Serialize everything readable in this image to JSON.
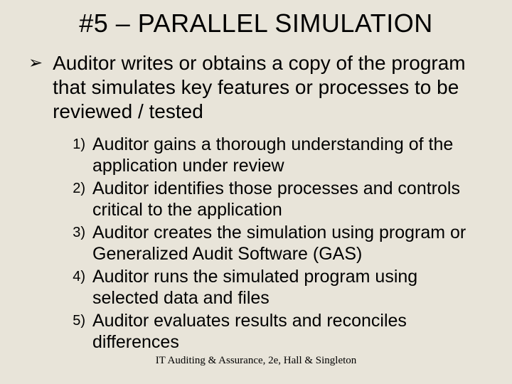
{
  "colors": {
    "background": "#e8e4d9",
    "text": "#000000"
  },
  "typography": {
    "title_fontsize": 36,
    "main_bullet_fontsize": 28,
    "num_marker_fontsize": 20,
    "num_text_fontsize": 25,
    "footer_fontsize": 15,
    "body_font": "Arial",
    "footer_font": "Times New Roman"
  },
  "title": "#5 – PARALLEL SIMULATION",
  "main_bullet": {
    "marker": "➢",
    "text": "Auditor writes or obtains a copy of the program that simulates key features or processes to be reviewed / tested"
  },
  "numbered_items": [
    {
      "marker": "1)",
      "text": "Auditor gains a thorough understanding of the application under review"
    },
    {
      "marker": "2)",
      "text": "Auditor identifies those processes and controls critical to the application"
    },
    {
      "marker": "3)",
      "text": "Auditor creates the simulation using program or Generalized Audit Software (GAS)"
    },
    {
      "marker": "4)",
      "text": "Auditor runs the simulated program using selected data and files"
    },
    {
      "marker": "5)",
      "text": "Auditor evaluates results and reconciles differences"
    }
  ],
  "footer": "IT Auditing & Assurance, 2e, Hall & Singleton"
}
